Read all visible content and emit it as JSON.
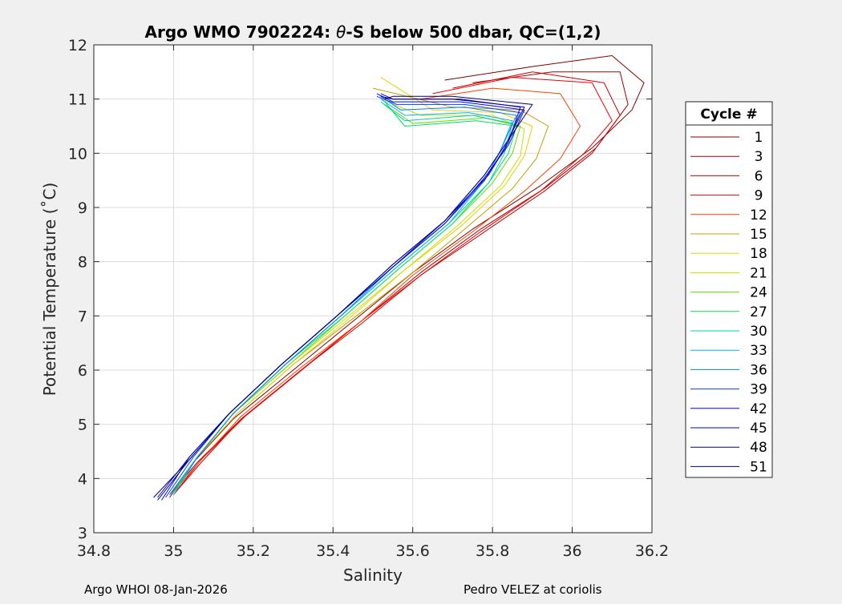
{
  "chart_data": {
    "type": "line",
    "title_prefix": "Argo WMO 7902224: ",
    "title_theta": "θ",
    "title_suffix": "-S below 500 dbar,  QC=(1,2)",
    "xlabel": "Salinity",
    "ylabel": "Potential Temperature (˚C)",
    "xlim": [
      34.8,
      36.2
    ],
    "ylim": [
      3,
      12
    ],
    "xticks": [
      34.8,
      35,
      35.2,
      35.4,
      35.6,
      35.8,
      36,
      36.2
    ],
    "xtick_labels": [
      "34.8",
      "35",
      "35.2",
      "35.4",
      "35.6",
      "35.8",
      "36",
      "36.2"
    ],
    "yticks": [
      3,
      4,
      5,
      6,
      7,
      8,
      9,
      10,
      11,
      12
    ],
    "ytick_labels": [
      "3",
      "4",
      "5",
      "6",
      "7",
      "8",
      "9",
      "10",
      "11",
      "12"
    ],
    "grid": true,
    "legend_title": "Cycle #",
    "legend_position": "right",
    "series": [
      {
        "name": "1",
        "color": "#800000",
        "points": [
          [
            34.99,
            3.65
          ],
          [
            35.05,
            4.3
          ],
          [
            35.15,
            5.1
          ],
          [
            35.3,
            6.0
          ],
          [
            35.45,
            6.9
          ],
          [
            35.6,
            7.8
          ],
          [
            35.75,
            8.6
          ],
          [
            35.92,
            9.4
          ],
          [
            36.05,
            10.1
          ],
          [
            36.15,
            10.8
          ],
          [
            36.18,
            11.3
          ],
          [
            36.1,
            11.8
          ],
          [
            35.9,
            11.6
          ],
          [
            35.68,
            11.35
          ]
        ]
      },
      {
        "name": "3",
        "color": "#a00000",
        "points": [
          [
            34.99,
            3.7
          ],
          [
            35.06,
            4.3
          ],
          [
            35.17,
            5.1
          ],
          [
            35.32,
            6.0
          ],
          [
            35.47,
            6.9
          ],
          [
            35.62,
            7.8
          ],
          [
            35.77,
            8.6
          ],
          [
            35.93,
            9.35
          ],
          [
            36.06,
            10.1
          ],
          [
            36.14,
            10.9
          ],
          [
            36.12,
            11.5
          ],
          [
            35.95,
            11.5
          ],
          [
            35.75,
            11.3
          ]
        ]
      },
      {
        "name": "6",
        "color": "#d00000",
        "points": [
          [
            35.0,
            3.7
          ],
          [
            35.07,
            4.3
          ],
          [
            35.17,
            5.1
          ],
          [
            35.32,
            6.0
          ],
          [
            35.47,
            6.85
          ],
          [
            35.62,
            7.75
          ],
          [
            35.78,
            8.55
          ],
          [
            35.93,
            9.3
          ],
          [
            36.05,
            10.0
          ],
          [
            36.12,
            10.7
          ],
          [
            36.08,
            11.3
          ],
          [
            35.9,
            11.5
          ],
          [
            35.7,
            11.2
          ]
        ]
      },
      {
        "name": "9",
        "color": "#f00000",
        "points": [
          [
            35.0,
            3.7
          ],
          [
            35.07,
            4.35
          ],
          [
            35.18,
            5.15
          ],
          [
            35.33,
            6.05
          ],
          [
            35.47,
            6.9
          ],
          [
            35.62,
            7.75
          ],
          [
            35.77,
            8.55
          ],
          [
            35.92,
            9.3
          ],
          [
            36.03,
            10.0
          ],
          [
            36.1,
            10.6
          ],
          [
            36.05,
            11.3
          ],
          [
            35.85,
            11.4
          ],
          [
            35.65,
            11.1
          ]
        ]
      },
      {
        "name": "12",
        "color": "#ff4000",
        "points": [
          [
            35.0,
            3.75
          ],
          [
            35.07,
            4.35
          ],
          [
            35.17,
            5.15
          ],
          [
            35.32,
            6.05
          ],
          [
            35.47,
            6.9
          ],
          [
            35.6,
            7.75
          ],
          [
            35.75,
            8.55
          ],
          [
            35.88,
            9.3
          ],
          [
            35.97,
            9.9
          ],
          [
            36.02,
            10.5
          ],
          [
            35.97,
            11.1
          ],
          [
            35.8,
            11.2
          ],
          [
            35.62,
            11.0
          ]
        ]
      },
      {
        "name": "15",
        "color": "#c0a000",
        "points": [
          [
            35.0,
            3.75
          ],
          [
            35.06,
            4.4
          ],
          [
            35.16,
            5.2
          ],
          [
            35.3,
            6.1
          ],
          [
            35.45,
            6.95
          ],
          [
            35.6,
            7.8
          ],
          [
            35.73,
            8.6
          ],
          [
            35.85,
            9.35
          ],
          [
            35.91,
            9.9
          ],
          [
            35.94,
            10.5
          ],
          [
            35.87,
            10.8
          ],
          [
            35.7,
            10.85
          ],
          [
            35.5,
            11.2
          ]
        ]
      },
      {
        "name": "18",
        "color": "#e8d000",
        "points": [
          [
            35.0,
            3.8
          ],
          [
            35.06,
            4.4
          ],
          [
            35.16,
            5.2
          ],
          [
            35.3,
            6.1
          ],
          [
            35.44,
            6.95
          ],
          [
            35.58,
            7.85
          ],
          [
            35.72,
            8.65
          ],
          [
            35.83,
            9.4
          ],
          [
            35.88,
            9.95
          ],
          [
            35.9,
            10.5
          ],
          [
            35.82,
            10.75
          ],
          [
            35.65,
            10.8
          ],
          [
            35.52,
            11.4
          ]
        ]
      },
      {
        "name": "21",
        "color": "#c8e000",
        "points": [
          [
            35.0,
            3.8
          ],
          [
            35.06,
            4.4
          ],
          [
            35.15,
            5.2
          ],
          [
            35.29,
            6.1
          ],
          [
            35.44,
            7.0
          ],
          [
            35.58,
            7.85
          ],
          [
            35.71,
            8.65
          ],
          [
            35.82,
            9.4
          ],
          [
            35.87,
            9.95
          ],
          [
            35.88,
            10.45
          ],
          [
            35.8,
            10.7
          ],
          [
            35.62,
            10.7
          ],
          [
            35.52,
            11.0
          ]
        ]
      },
      {
        "name": "24",
        "color": "#60e000",
        "points": [
          [
            35.0,
            3.75
          ],
          [
            35.06,
            4.4
          ],
          [
            35.15,
            5.2
          ],
          [
            35.29,
            6.1
          ],
          [
            35.43,
            7.0
          ],
          [
            35.57,
            7.9
          ],
          [
            35.7,
            8.7
          ],
          [
            35.8,
            9.45
          ],
          [
            35.85,
            10.0
          ],
          [
            35.87,
            10.5
          ],
          [
            35.78,
            10.65
          ],
          [
            35.6,
            10.55
          ],
          [
            35.53,
            10.9
          ]
        ]
      },
      {
        "name": "27",
        "color": "#00e060",
        "points": [
          [
            35.0,
            3.75
          ],
          [
            35.06,
            4.4
          ],
          [
            35.15,
            5.2
          ],
          [
            35.28,
            6.1
          ],
          [
            35.43,
            7.0
          ],
          [
            35.57,
            7.9
          ],
          [
            35.7,
            8.7
          ],
          [
            35.79,
            9.45
          ],
          [
            35.84,
            10.0
          ],
          [
            35.86,
            10.5
          ],
          [
            35.76,
            10.6
          ],
          [
            35.58,
            10.5
          ],
          [
            35.53,
            10.95
          ]
        ]
      },
      {
        "name": "30",
        "color": "#00d0b0",
        "points": [
          [
            35.0,
            3.7
          ],
          [
            35.06,
            4.4
          ],
          [
            35.15,
            5.2
          ],
          [
            35.28,
            6.1
          ],
          [
            35.42,
            7.0
          ],
          [
            35.56,
            7.9
          ],
          [
            35.69,
            8.7
          ],
          [
            35.79,
            9.45
          ],
          [
            35.83,
            10.0
          ],
          [
            35.85,
            10.55
          ],
          [
            35.75,
            10.7
          ],
          [
            35.58,
            10.6
          ],
          [
            35.52,
            10.95
          ]
        ]
      },
      {
        "name": "33",
        "color": "#00b0ff",
        "points": [
          [
            35.0,
            3.7
          ],
          [
            35.06,
            4.4
          ],
          [
            35.15,
            5.2
          ],
          [
            35.28,
            6.1
          ],
          [
            35.42,
            7.0
          ],
          [
            35.56,
            7.9
          ],
          [
            35.69,
            8.7
          ],
          [
            35.78,
            9.5
          ],
          [
            35.82,
            10.05
          ],
          [
            35.85,
            10.6
          ],
          [
            35.74,
            10.75
          ],
          [
            35.58,
            10.7
          ],
          [
            35.52,
            11.0
          ]
        ]
      },
      {
        "name": "36",
        "color": "#0080ff",
        "points": [
          [
            34.99,
            3.7
          ],
          [
            35.06,
            4.4
          ],
          [
            35.15,
            5.2
          ],
          [
            35.28,
            6.1
          ],
          [
            35.42,
            7.0
          ],
          [
            35.55,
            7.9
          ],
          [
            35.68,
            8.7
          ],
          [
            35.78,
            9.5
          ],
          [
            35.82,
            10.05
          ],
          [
            35.86,
            10.7
          ],
          [
            35.73,
            10.85
          ],
          [
            35.57,
            10.8
          ],
          [
            35.52,
            11.05
          ]
        ]
      },
      {
        "name": "39",
        "color": "#0040ff",
        "points": [
          [
            34.98,
            3.65
          ],
          [
            35.05,
            4.4
          ],
          [
            35.14,
            5.2
          ],
          [
            35.27,
            6.1
          ],
          [
            35.41,
            7.0
          ],
          [
            35.55,
            7.9
          ],
          [
            35.68,
            8.7
          ],
          [
            35.78,
            9.5
          ],
          [
            35.83,
            10.1
          ],
          [
            35.87,
            10.75
          ],
          [
            35.73,
            10.9
          ],
          [
            35.56,
            10.9
          ],
          [
            35.51,
            11.05
          ]
        ]
      },
      {
        "name": "42",
        "color": "#0000f0",
        "points": [
          [
            34.97,
            3.6
          ],
          [
            35.04,
            4.4
          ],
          [
            35.14,
            5.2
          ],
          [
            35.27,
            6.1
          ],
          [
            35.41,
            7.0
          ],
          [
            35.55,
            7.9
          ],
          [
            35.68,
            8.7
          ],
          [
            35.78,
            9.55
          ],
          [
            35.84,
            10.15
          ],
          [
            35.88,
            10.8
          ],
          [
            35.72,
            10.95
          ],
          [
            35.55,
            10.95
          ],
          [
            35.51,
            11.1
          ]
        ]
      },
      {
        "name": "45",
        "color": "#0000c0",
        "points": [
          [
            34.96,
            3.65
          ],
          [
            35.04,
            4.4
          ],
          [
            35.14,
            5.2
          ],
          [
            35.27,
            6.1
          ],
          [
            35.41,
            7.0
          ],
          [
            35.55,
            7.9
          ],
          [
            35.68,
            8.75
          ],
          [
            35.79,
            9.6
          ],
          [
            35.84,
            10.2
          ],
          [
            35.87,
            10.85
          ],
          [
            35.72,
            11.0
          ],
          [
            35.55,
            11.0
          ],
          [
            35.52,
            11.1
          ]
        ]
      },
      {
        "name": "48",
        "color": "#000090",
        "points": [
          [
            34.96,
            3.6
          ],
          [
            35.04,
            4.35
          ],
          [
            35.14,
            5.2
          ],
          [
            35.27,
            6.1
          ],
          [
            35.41,
            7.0
          ],
          [
            35.55,
            7.95
          ],
          [
            35.68,
            8.75
          ],
          [
            35.78,
            9.6
          ],
          [
            35.84,
            10.25
          ],
          [
            35.88,
            10.85
          ],
          [
            35.7,
            11.0
          ],
          [
            35.55,
            11.0
          ],
          [
            35.52,
            11.05
          ]
        ]
      },
      {
        "name": "51",
        "color": "#000070",
        "points": [
          [
            34.95,
            3.65
          ],
          [
            35.04,
            4.35
          ],
          [
            35.14,
            5.2
          ],
          [
            35.27,
            6.1
          ],
          [
            35.41,
            7.0
          ],
          [
            35.55,
            7.95
          ],
          [
            35.68,
            8.75
          ],
          [
            35.78,
            9.6
          ],
          [
            35.84,
            10.25
          ],
          [
            35.9,
            10.9
          ],
          [
            35.7,
            11.05
          ],
          [
            35.55,
            11.05
          ],
          [
            35.53,
            11.0
          ]
        ]
      }
    ]
  },
  "footer": {
    "left": "Argo WHOI 08-Jan-2026",
    "right": "Pedro VELEZ at coriolis"
  }
}
